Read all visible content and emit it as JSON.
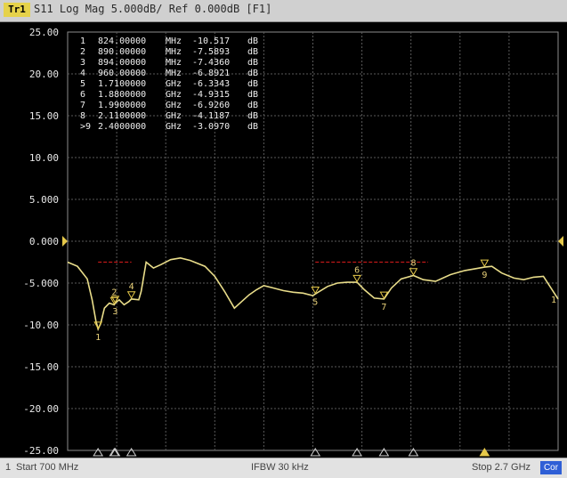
{
  "header": {
    "trace_tag": "Tr1",
    "title": "S11 Log Mag 5.000dB/ Ref 0.000dB [F1]"
  },
  "status": {
    "channel": "1",
    "start": "Start 700 MHz",
    "ifbw": "IFBW 30 kHz",
    "stop": "Stop 2.7 GHz",
    "badge": "Cor"
  },
  "colors": {
    "trace": "#e9dd8a",
    "grid": "#5a5a5a",
    "limit_line": "#c01818",
    "marker_triangle": "#e6c94a",
    "reference_arrow": "#e6c94a"
  },
  "markers": [
    {
      "num": "1",
      "freq": "824.00000",
      "unit": "MHz",
      "value": "-10.517",
      "db": "dB"
    },
    {
      "num": "2",
      "freq": "890.00000",
      "unit": "MHz",
      "value": "-7.5893",
      "db": "dB"
    },
    {
      "num": "3",
      "freq": "894.00000",
      "unit": "MHz",
      "value": "-7.4360",
      "db": "dB"
    },
    {
      "num": "4",
      "freq": "960.00000",
      "unit": "MHz",
      "value": "-6.8921",
      "db": "dB"
    },
    {
      "num": "5",
      "freq": "1.7100000",
      "unit": "GHz",
      "value": "-6.3343",
      "db": "dB"
    },
    {
      "num": "6",
      "freq": "1.8800000",
      "unit": "GHz",
      "value": "-4.9315",
      "db": "dB"
    },
    {
      "num": "7",
      "freq": "1.9900000",
      "unit": "GHz",
      "value": "-6.9260",
      "db": "dB"
    },
    {
      "num": "8",
      "freq": "2.1100000",
      "unit": "GHz",
      "value": "-4.1187",
      "db": "dB"
    },
    {
      "num": ">9",
      "freq": "2.4000000",
      "unit": "GHz",
      "value": "-3.0970",
      "db": "dB"
    }
  ],
  "chart_data": {
    "type": "line",
    "title": "",
    "xlabel": "",
    "ylabel": "",
    "xlim": [
      700,
      2700
    ],
    "ylim": [
      -25,
      25
    ],
    "y_ticks": [
      "25.00",
      "20.00",
      "15.00",
      "10.00",
      "5.000",
      "0.000",
      "-5.000",
      "-10.00",
      "-15.00",
      "-20.00",
      "-25.00"
    ],
    "grid": true,
    "x": [
      700,
      740,
      780,
      800,
      815,
      824,
      835,
      850,
      870,
      890,
      894,
      910,
      930,
      950,
      960,
      990,
      1000,
      1020,
      1050,
      1080,
      1120,
      1160,
      1200,
      1260,
      1300,
      1340,
      1380,
      1410,
      1440,
      1470,
      1500,
      1540,
      1580,
      1620,
      1660,
      1700,
      1710,
      1760,
      1800,
      1840,
      1880,
      1910,
      1950,
      1990,
      2020,
      2060,
      2110,
      2150,
      2200,
      2260,
      2320,
      2380,
      2400,
      2430,
      2470,
      2520,
      2560,
      2600,
      2640,
      2700
    ],
    "y": [
      -2.5,
      -3.0,
      -4.5,
      -7.0,
      -9.5,
      -10.5,
      -9.8,
      -8.0,
      -7.4,
      -7.6,
      -7.4,
      -7.0,
      -7.6,
      -7.2,
      -6.9,
      -7.0,
      -6.0,
      -2.5,
      -3.2,
      -2.8,
      -2.2,
      -2.0,
      -2.3,
      -3.0,
      -4.2,
      -6.0,
      -8.0,
      -7.2,
      -6.4,
      -5.8,
      -5.3,
      -5.6,
      -5.9,
      -6.1,
      -6.2,
      -6.5,
      -6.3,
      -5.4,
      -5.0,
      -4.9,
      -4.9,
      -5.8,
      -6.8,
      -6.9,
      -5.6,
      -4.5,
      -4.1,
      -4.6,
      -4.8,
      -4.0,
      -3.5,
      -3.2,
      -3.1,
      -3.0,
      -3.8,
      -4.4,
      -4.6,
      -4.3,
      -4.2,
      -6.9
    ],
    "limit_lines": [
      {
        "x": [
          824,
          960
        ],
        "y": -2.5
      },
      {
        "x": [
          1710,
          2170
        ],
        "y": -2.5
      }
    ],
    "marker_points": [
      {
        "label": "1",
        "x": 824,
        "y": -10.517
      },
      {
        "label": "2",
        "x": 890,
        "y": -7.5893
      },
      {
        "label": "3",
        "x": 894,
        "y": -7.436
      },
      {
        "label": "4",
        "x": 960,
        "y": -6.8921
      },
      {
        "label": "5",
        "x": 1710,
        "y": -6.3343
      },
      {
        "label": "6",
        "x": 1880,
        "y": -4.9315
      },
      {
        "label": "7",
        "x": 1990,
        "y": -6.926
      },
      {
        "label": "8",
        "x": 2110,
        "y": -4.1187
      },
      {
        "label": "9",
        "x": 2400,
        "y": -3.097
      }
    ],
    "end_label": "1"
  }
}
